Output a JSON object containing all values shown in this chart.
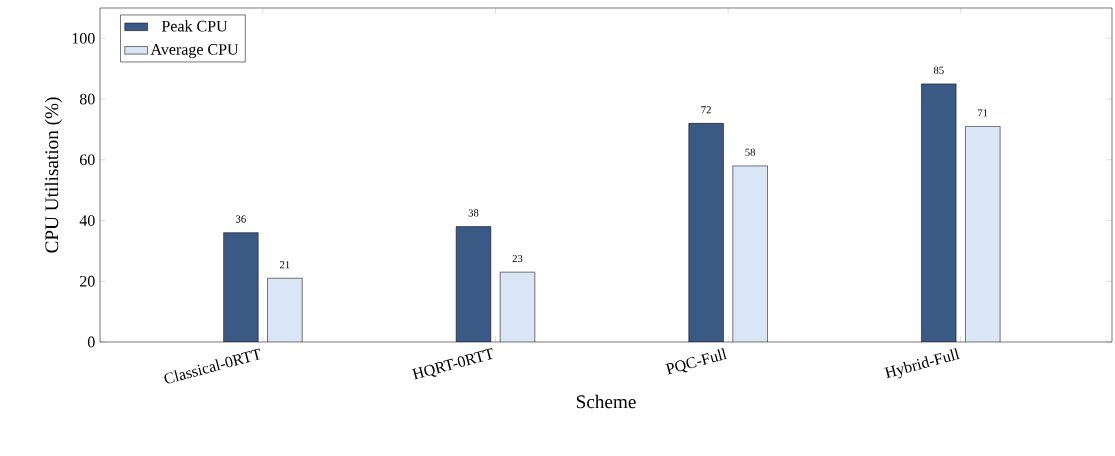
{
  "chart_data": {
    "type": "bar",
    "xlabel": "Scheme",
    "ylabel": "CPU Utilisation (%)",
    "categories": [
      "Classical-0RTT",
      "HQRT-0RTT",
      "PQC-Full",
      "Hybrid-Full"
    ],
    "series": [
      {
        "name": "Peak CPU",
        "color": "#3a5a85",
        "values": [
          36,
          38,
          72,
          85
        ]
      },
      {
        "name": "Average CPU",
        "color": "#dae5f5",
        "values": [
          21,
          23,
          58,
          71
        ]
      }
    ],
    "ylim": [
      0,
      110
    ],
    "yticks": [
      0,
      20,
      40,
      60,
      80,
      100
    ],
    "legend": "top left",
    "data_labels": true
  }
}
